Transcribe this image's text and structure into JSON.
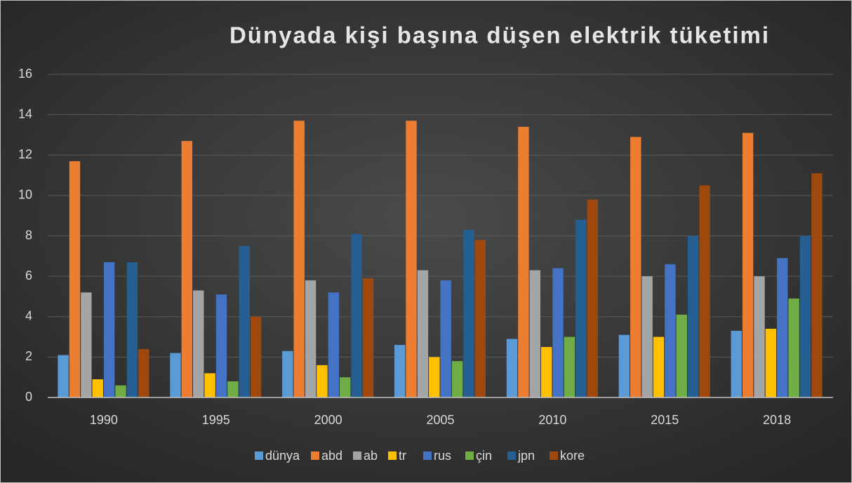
{
  "chart_data": {
    "type": "bar",
    "title": "Dünyada kişi başına düşen elektrik tüketimi",
    "categories": [
      "1990",
      "1995",
      "2000",
      "2005",
      "2010",
      "2015",
      "2018"
    ],
    "series": [
      {
        "name": "dünya",
        "color": "#5b9bd5",
        "values": [
          2.1,
          2.2,
          2.3,
          2.6,
          2.9,
          3.1,
          3.3
        ]
      },
      {
        "name": "abd",
        "color": "#ed7d31",
        "values": [
          11.7,
          12.7,
          13.7,
          13.7,
          13.4,
          12.9,
          13.1
        ]
      },
      {
        "name": "ab",
        "color": "#a5a5a5",
        "values": [
          5.2,
          5.3,
          5.8,
          6.3,
          6.3,
          6.0,
          6.0
        ]
      },
      {
        "name": "tr",
        "color": "#ffc000",
        "values": [
          0.9,
          1.2,
          1.6,
          2.0,
          2.5,
          3.0,
          3.4
        ]
      },
      {
        "name": "rus",
        "color": "#4472c4",
        "values": [
          6.7,
          5.1,
          5.2,
          5.8,
          6.4,
          6.6,
          6.9
        ]
      },
      {
        "name": "çin",
        "color": "#70ad47",
        "values": [
          0.6,
          0.8,
          1.0,
          1.8,
          3.0,
          4.1,
          4.9
        ]
      },
      {
        "name": "jpn",
        "color": "#255e91",
        "values": [
          6.7,
          7.5,
          8.1,
          8.3,
          8.8,
          8.0,
          8.0
        ]
      },
      {
        "name": "kore",
        "color": "#9e480e",
        "values": [
          2.4,
          4.0,
          5.9,
          7.8,
          9.8,
          10.5,
          11.1
        ]
      }
    ],
    "ylim": [
      0,
      16
    ],
    "yticks": [
      0,
      2,
      4,
      6,
      8,
      10,
      12,
      14,
      16
    ],
    "grid": true,
    "legend": "bottom"
  }
}
